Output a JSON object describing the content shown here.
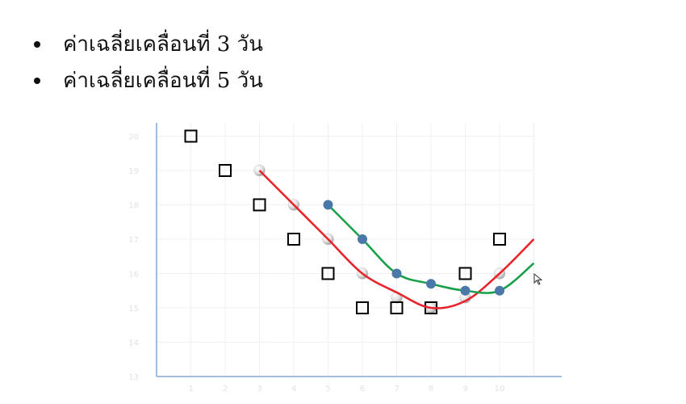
{
  "bullets": [
    {
      "label": "ค่าเฉลี่ยเคลื่อนที่ 3 วัน"
    },
    {
      "label": "ค่าเฉลี่ยเคลื่อนที่ 5 วัน"
    }
  ],
  "chart_data": {
    "type": "scatter",
    "title": "",
    "xlabel": "",
    "ylabel": "",
    "x_ticks": [
      "1",
      "2",
      "3",
      "4",
      "5",
      "6",
      "7",
      "8",
      "9",
      "10"
    ],
    "y_ticks": [
      "13",
      "14",
      "15",
      "16",
      "17",
      "18",
      "19",
      "20"
    ],
    "xlim": [
      0,
      11
    ],
    "ylim": [
      13,
      20.2
    ],
    "grid": true,
    "series": [
      {
        "style": "markers",
        "marker": "open-square",
        "color": "#000000",
        "points": [
          [
            1,
            20
          ],
          [
            2,
            19
          ],
          [
            3,
            18
          ],
          [
            4,
            17
          ],
          [
            5,
            16
          ],
          [
            6,
            15
          ],
          [
            7,
            15
          ],
          [
            8,
            15
          ],
          [
            9,
            16
          ],
          [
            10,
            17
          ]
        ]
      },
      {
        "style": "markers",
        "marker": "sphere",
        "color": "#d9d9d9",
        "points": [
          [
            3,
            19
          ],
          [
            4,
            18
          ],
          [
            5,
            17
          ],
          [
            6,
            16
          ],
          [
            7,
            15.3
          ],
          [
            8,
            15
          ],
          [
            9,
            15.3
          ],
          [
            10,
            16
          ]
        ]
      },
      {
        "style": "line",
        "color": "#e8232b",
        "points": [
          [
            3,
            19
          ],
          [
            4,
            18
          ],
          [
            5,
            17
          ],
          [
            6,
            16
          ],
          [
            7,
            15.45
          ],
          [
            8,
            15
          ],
          [
            9,
            15.2
          ],
          [
            10,
            16
          ],
          [
            11,
            17
          ]
        ]
      },
      {
        "style": "line-markers",
        "color": "#19a04b",
        "marker_color": "#4a78a8",
        "points": [
          [
            5,
            18
          ],
          [
            6,
            17
          ],
          [
            7,
            16
          ],
          [
            8,
            15.7
          ],
          [
            9,
            15.5
          ],
          [
            10,
            15.5
          ],
          [
            11,
            16.3
          ]
        ],
        "marker_points": [
          [
            5,
            18
          ],
          [
            6,
            17
          ],
          [
            7,
            16
          ],
          [
            8,
            15.7
          ],
          [
            9,
            15.5
          ],
          [
            10,
            15.5
          ]
        ]
      }
    ]
  }
}
